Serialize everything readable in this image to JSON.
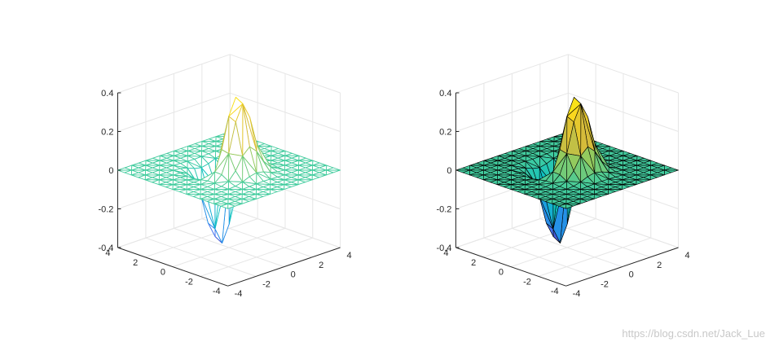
{
  "chart_data": [
    {
      "type": "surface",
      "style": "mesh (wireframe triangles, parula colormap)",
      "function": "z = x * exp(-x^2 - y^2)",
      "x_range": [
        -4,
        4
      ],
      "y_range": [
        -4,
        4
      ],
      "zlim": [
        -0.4,
        0.4
      ],
      "z_ticks": [
        "0.4",
        "0.2",
        "0",
        "-0.2",
        "-0.4"
      ],
      "x_ticks": [
        "-4",
        "-2",
        "0",
        "2",
        "4"
      ],
      "y_ticks": [
        "4",
        "2",
        "0",
        "-2",
        "-4"
      ],
      "z_max": 0.43,
      "z_min": -0.43,
      "grid": true,
      "box": "3d"
    },
    {
      "type": "surface",
      "style": "filled triangles with black edges, parula colormap",
      "function": "z = x * exp(-x^2 - y^2)",
      "x_range": [
        -4,
        4
      ],
      "y_range": [
        -4,
        4
      ],
      "zlim": [
        -0.4,
        0.4
      ],
      "z_ticks": [
        "0.4",
        "0.2",
        "0",
        "-0.2",
        "-0.4"
      ],
      "x_ticks": [
        "-4",
        "-2",
        "0",
        "2",
        "4"
      ],
      "y_ticks": [
        "4",
        "2",
        "0",
        "-2",
        "-4"
      ],
      "z_max": 0.43,
      "z_min": -0.43,
      "grid": true,
      "box": "3d"
    }
  ],
  "colormap": [
    "#3e26a8",
    "#4771ee",
    "#1f96e6",
    "#0dc1c2",
    "#42cc9e",
    "#94ca5d",
    "#d6bc3a",
    "#fbd81d",
    "#f9fb0e"
  ],
  "watermark": "https://blog.csdn.net/Jack_Lue"
}
